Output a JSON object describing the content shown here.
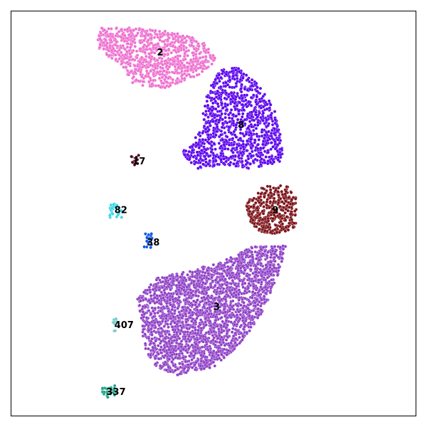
{
  "chart_data": {
    "type": "scatter",
    "title": "",
    "xlabel": "",
    "ylabel": "",
    "grid": false,
    "legend": "none",
    "axis_ticks": false,
    "xlim": [
      0,
      100
    ],
    "ylim": [
      0,
      100
    ],
    "clusters": [
      {
        "label": "2",
        "color": "#ee6fcf",
        "center": [
          36,
          90
        ],
        "points": 900,
        "hull": [
          [
            21,
            96
          ],
          [
            31,
            96
          ],
          [
            39,
            95
          ],
          [
            47,
            93
          ],
          [
            51,
            88
          ],
          [
            46,
            84
          ],
          [
            38,
            81
          ],
          [
            30,
            82
          ],
          [
            27,
            87
          ],
          [
            22,
            90
          ],
          [
            21,
            93
          ]
        ]
      },
      {
        "label": "8",
        "color": "#5a00ee",
        "center": [
          56,
          72
        ],
        "points": 1100,
        "hull": [
          [
            52,
            86
          ],
          [
            56,
            86
          ],
          [
            61,
            82
          ],
          [
            65,
            76
          ],
          [
            67,
            69
          ],
          [
            67,
            63
          ],
          [
            60,
            61
          ],
          [
            52,
            62
          ],
          [
            46,
            61
          ],
          [
            42,
            65
          ],
          [
            45,
            68
          ],
          [
            48,
            72
          ],
          [
            47,
            75
          ],
          [
            49,
            81
          ]
        ]
      },
      {
        "label": "17",
        "color": "#54001a",
        "center": [
          30,
          63
        ],
        "points": 12,
        "hull": [
          [
            29.5,
            64.5
          ],
          [
            31.8,
            64.5
          ],
          [
            31.8,
            62
          ],
          [
            29.5,
            62
          ]
        ]
      },
      {
        "label": "82",
        "color": "#36d8e6",
        "center": [
          25.5,
          51
        ],
        "points": 28,
        "hull": [
          [
            24.5,
            52.5
          ],
          [
            27.5,
            52.5
          ],
          [
            27.5,
            49
          ],
          [
            24,
            49
          ]
        ]
      },
      {
        "label": "38",
        "color": "#0a55e8",
        "center": [
          33.5,
          43
        ],
        "points": 18,
        "hull": [
          [
            33,
            45
          ],
          [
            35,
            45
          ],
          [
            35,
            41.5
          ],
          [
            32.5,
            41.5
          ]
        ]
      },
      {
        "label": "9",
        "color": "#7a1016",
        "center": [
          64.5,
          51
        ],
        "points": 380,
        "hull": [
          [
            60,
            55
          ],
          [
            63,
            57
          ],
          [
            68,
            57
          ],
          [
            70.5,
            54
          ],
          [
            70.5,
            47
          ],
          [
            67,
            45
          ],
          [
            62,
            45
          ],
          [
            59,
            48
          ],
          [
            58,
            52
          ]
        ]
      },
      {
        "label": "3",
        "color": "#8e3fc6",
        "center": [
          50,
          27
        ],
        "points": 2600,
        "hull": [
          [
            60,
            42
          ],
          [
            68,
            42
          ],
          [
            66,
            35
          ],
          [
            63,
            27
          ],
          [
            57,
            18
          ],
          [
            50,
            12
          ],
          [
            41,
            10
          ],
          [
            36,
            12
          ],
          [
            33,
            16
          ],
          [
            32,
            24
          ],
          [
            31,
            29
          ],
          [
            36,
            34
          ],
          [
            44,
            36
          ],
          [
            52,
            38
          ]
        ]
      },
      {
        "label": "407",
        "color": "#6ccccc",
        "center": [
          25.5,
          22.5
        ],
        "points": 10,
        "hull": [
          [
            25,
            24
          ],
          [
            26,
            24
          ],
          [
            26,
            20.5
          ],
          [
            25,
            20.5
          ]
        ]
      },
      {
        "label": "337",
        "color": "#1aa088",
        "center": [
          23.5,
          6
        ],
        "points": 25,
        "hull": [
          [
            22.5,
            7.5
          ],
          [
            26,
            7.5
          ],
          [
            26,
            4.5
          ],
          [
            22.5,
            4.5
          ]
        ]
      }
    ]
  }
}
